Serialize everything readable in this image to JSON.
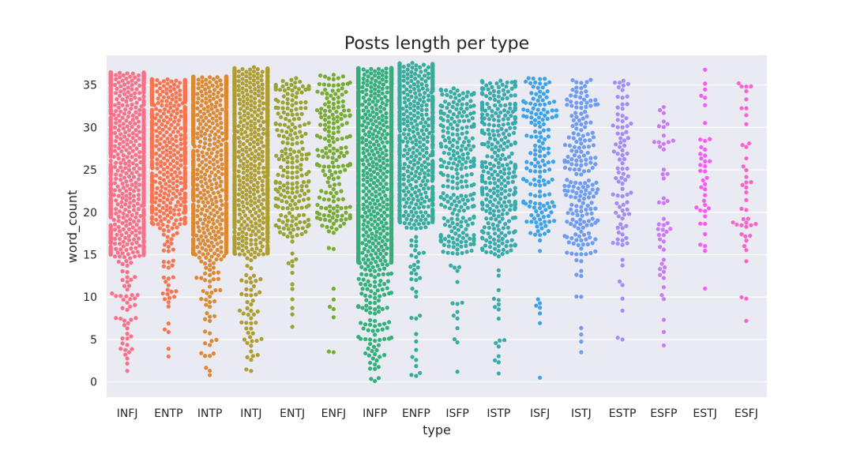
{
  "chart_data": {
    "type": "scatter",
    "subtype": "swarm",
    "title": "Posts length per type",
    "xlabel": "type",
    "ylabel": "word_count",
    "ylim": [
      -1.8,
      38.5
    ],
    "yticks": [
      0,
      5,
      10,
      15,
      20,
      25,
      30,
      35
    ],
    "grid": true,
    "legend": "none",
    "background_color": "#eaeaf2",
    "categories": [
      "INFJ",
      "ENTP",
      "INTP",
      "INTJ",
      "ENTJ",
      "ENFJ",
      "INFP",
      "ENFP",
      "ISFP",
      "ISTP",
      "ISFJ",
      "ISTJ",
      "ESTP",
      "ESFP",
      "ESTJ",
      "ESFJ"
    ],
    "colors": [
      "#f77189",
      "#f7754f",
      "#dc8932",
      "#ae9d31",
      "#97a431",
      "#77ab31",
      "#33b07a",
      "#35ad9c",
      "#36ada4",
      "#38aaac",
      "#3ba3ec",
      "#6e9bf4",
      "#a48cf4",
      "#cc7af4",
      "#f45cf2",
      "#f565cc"
    ],
    "series": [
      {
        "name": "INFJ",
        "n": 950,
        "min": 1.3,
        "max": 36.5,
        "p_low": 0.06,
        "p_high": 0.2,
        "d_low": [
          1.3,
          15
        ],
        "d_mid": [
          15,
          35
        ],
        "d_high": [
          35,
          36.5
        ]
      },
      {
        "name": "ENTP",
        "n": 720,
        "min": 3.0,
        "max": 35.7,
        "p_low": 0.06,
        "p_high": 0.28,
        "d_low": [
          3.0,
          18.5
        ],
        "d_mid": [
          18.5,
          33
        ],
        "d_high": [
          33,
          35.7
        ]
      },
      {
        "name": "INTP",
        "n": 1100,
        "min": 0.8,
        "max": 36.0,
        "p_low": 0.05,
        "p_high": 0.24,
        "d_low": [
          0.8,
          15
        ],
        "d_mid": [
          15,
          34
        ],
        "d_high": [
          34,
          36.0
        ]
      },
      {
        "name": "INTJ",
        "n": 1050,
        "min": 1.3,
        "max": 37.1,
        "p_low": 0.05,
        "p_high": 0.22,
        "d_low": [
          1.3,
          15
        ],
        "d_mid": [
          15,
          33
        ],
        "d_high": [
          33,
          37.1
        ]
      },
      {
        "name": "ENTJ",
        "n": 230,
        "min": 6.5,
        "max": 35.8,
        "p_low": 0.05,
        "p_high": 0.15,
        "d_low": [
          6.5,
          17
        ],
        "d_mid": [
          17,
          33
        ],
        "d_high": [
          33,
          35.8
        ]
      },
      {
        "name": "ENFJ",
        "n": 190,
        "min": 3.5,
        "max": 36.2,
        "p_low": 0.05,
        "p_high": 0.15,
        "d_low": [
          3.5,
          18
        ],
        "d_mid": [
          18,
          33
        ],
        "d_high": [
          33,
          36.2
        ]
      },
      {
        "name": "INFP",
        "n": 1830,
        "min": 0.1,
        "max": 37.0,
        "p_low": 0.06,
        "p_high": 0.2,
        "d_low": [
          0.1,
          14
        ],
        "d_mid": [
          14,
          35
        ],
        "d_high": [
          35,
          37.0
        ]
      },
      {
        "name": "ENFP",
        "n": 680,
        "min": 0.7,
        "max": 37.6,
        "p_low": 0.05,
        "p_high": 0.28,
        "d_low": [
          0.7,
          18
        ],
        "d_mid": [
          18,
          33
        ],
        "d_high": [
          33,
          37.6
        ]
      },
      {
        "name": "ISFP",
        "n": 270,
        "min": 1.2,
        "max": 34.6,
        "p_low": 0.05,
        "p_high": 0.2,
        "d_low": [
          1.2,
          15
        ],
        "d_mid": [
          15,
          31
        ],
        "d_high": [
          31,
          34.6
        ]
      },
      {
        "name": "ISTP",
        "n": 340,
        "min": 1.0,
        "max": 35.5,
        "p_low": 0.05,
        "p_high": 0.2,
        "d_low": [
          1.0,
          15
        ],
        "d_mid": [
          15,
          32
        ],
        "d_high": [
          32,
          35.5
        ]
      },
      {
        "name": "ISFJ",
        "n": 165,
        "min": 0.5,
        "max": 35.8,
        "p_low": 0.05,
        "p_high": 0.15,
        "d_low": [
          0.5,
          17
        ],
        "d_mid": [
          17,
          33
        ],
        "d_high": [
          33,
          35.8
        ]
      },
      {
        "name": "ISTJ",
        "n": 205,
        "min": 3.5,
        "max": 35.6,
        "p_low": 0.05,
        "p_high": 0.15,
        "d_low": [
          3.5,
          15
        ],
        "d_mid": [
          15,
          32
        ],
        "d_high": [
          32,
          35.6
        ]
      },
      {
        "name": "ESTP",
        "n": 89,
        "min": 5.0,
        "max": 35.5,
        "p_low": 0.08,
        "p_high": 0.18,
        "d_low": [
          5.0,
          16
        ],
        "d_mid": [
          16,
          31
        ],
        "d_high": [
          31,
          35.5
        ]
      },
      {
        "name": "ESFP",
        "n": 48,
        "min": 4.3,
        "max": 32.4,
        "p_low": 0.1,
        "p_high": 0.15,
        "d_low": [
          4.3,
          12
        ],
        "d_mid": [
          12,
          29
        ],
        "d_high": [
          29,
          32.4
        ]
      },
      {
        "name": "ESTJ",
        "n": 39,
        "min": 11.0,
        "max": 36.8,
        "p_low": 0.08,
        "p_high": 0.15,
        "d_low": [
          11.0,
          17
        ],
        "d_mid": [
          17,
          30
        ],
        "d_high": [
          30,
          36.8
        ]
      },
      {
        "name": "ESFJ",
        "n": 42,
        "min": 7.2,
        "max": 35.2,
        "p_low": 0.08,
        "p_high": 0.2,
        "d_low": [
          7.2,
          15
        ],
        "d_mid": [
          15,
          31
        ],
        "d_high": [
          31,
          35.2
        ]
      }
    ]
  }
}
